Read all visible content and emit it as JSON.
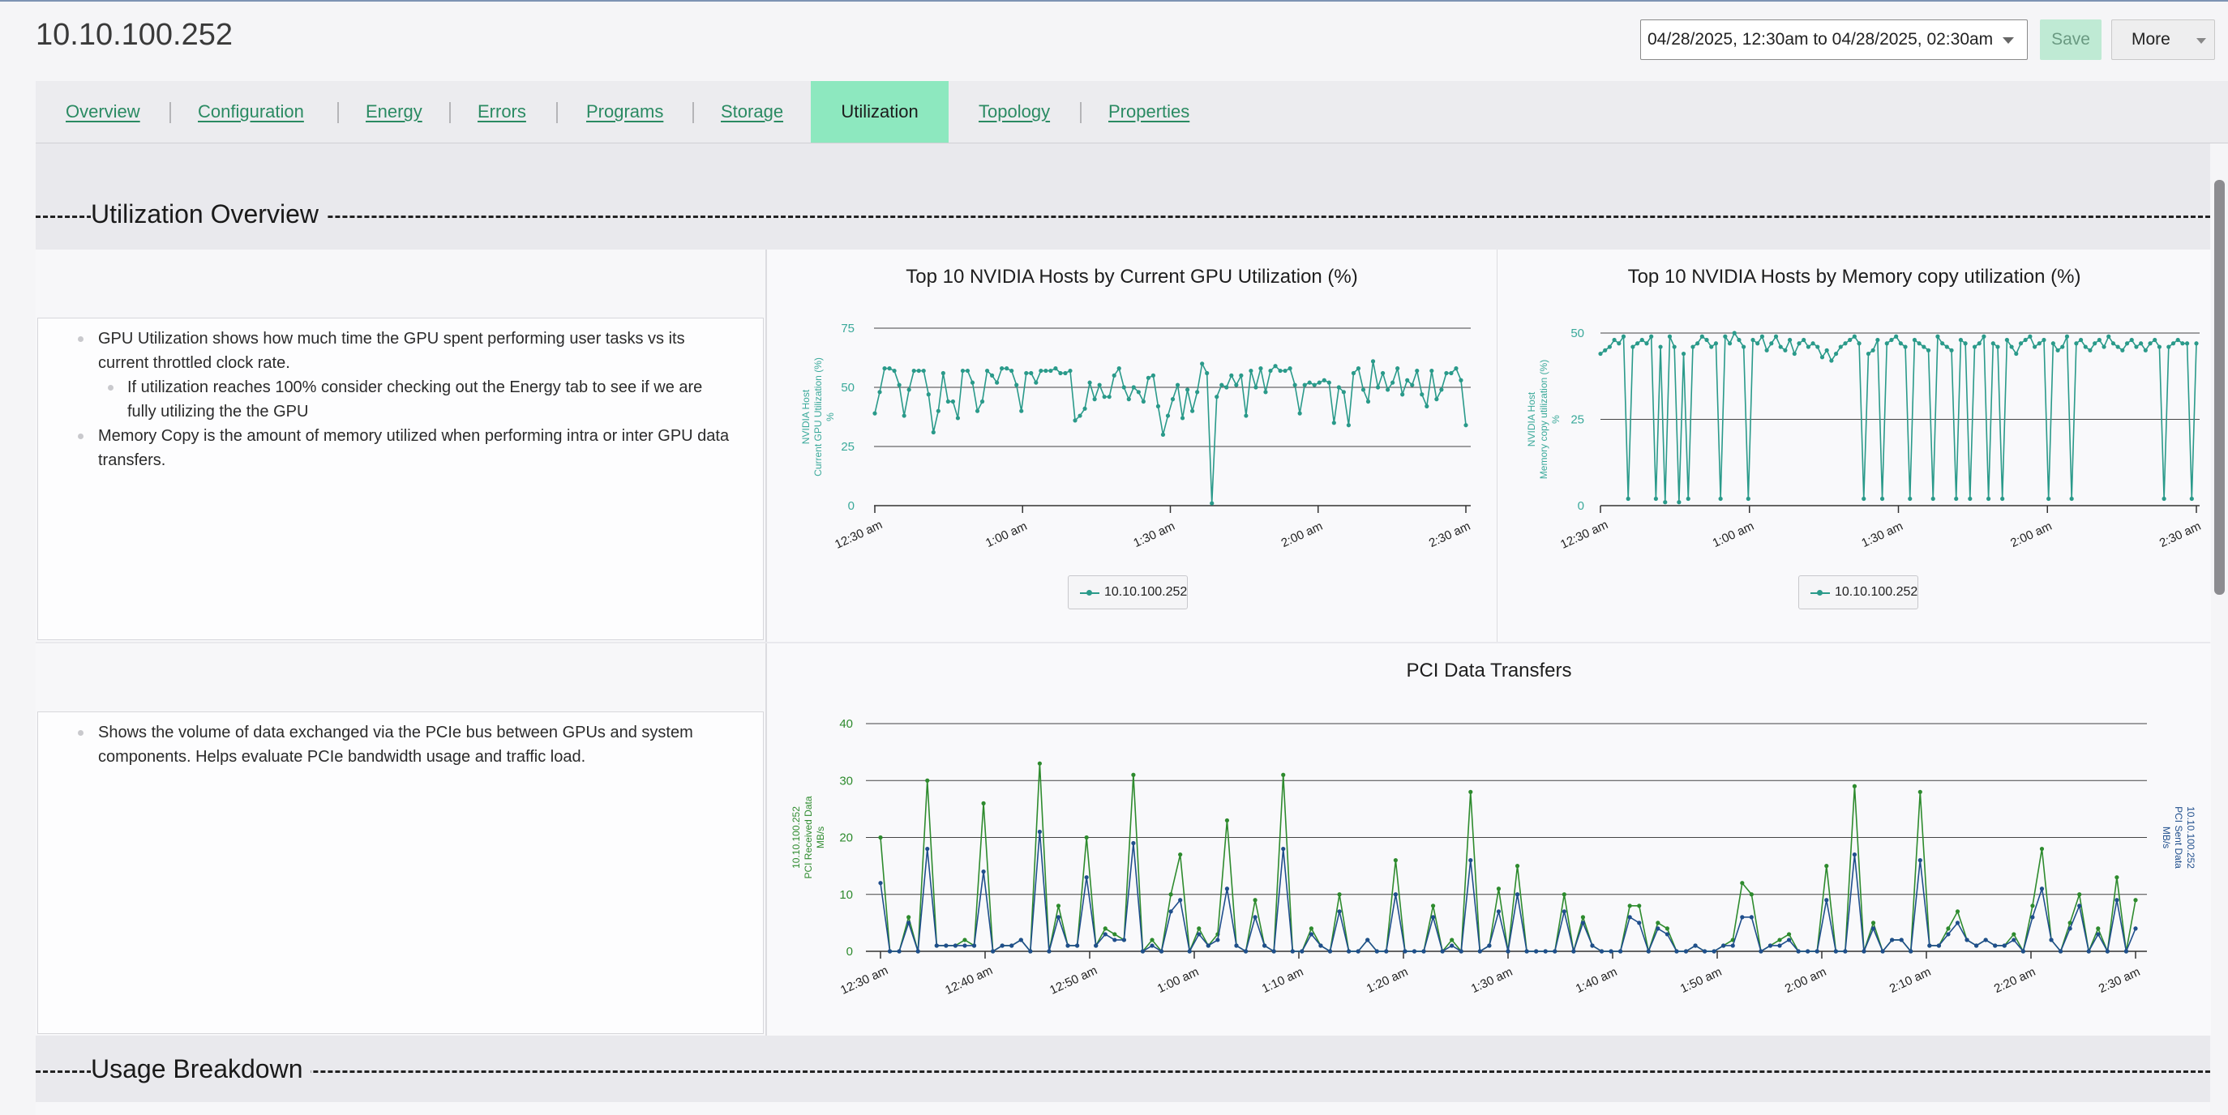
{
  "header": {
    "title": "10.10.100.252",
    "date_range": "04/28/2025, 12:30am to 04/28/2025, 02:30am",
    "save_label": "Save",
    "more_label": "More"
  },
  "tabs": [
    {
      "label": "Overview"
    },
    {
      "label": "Configuration"
    },
    {
      "label": "Energy"
    },
    {
      "label": "Errors"
    },
    {
      "label": "Programs"
    },
    {
      "label": "Storage"
    },
    {
      "label": "Utilization",
      "active": true
    },
    {
      "label": "Topology"
    },
    {
      "label": "Properties"
    }
  ],
  "sections": {
    "overview_title": "Utilization Overview",
    "usage_title": "Usage Breakdown"
  },
  "descriptions": {
    "gpu": {
      "b1": "GPU Utilization shows how much time the GPU spent performing user tasks vs its current throttled clock rate.",
      "b1_sub": "If utilization reaches 100% consider checking out the Energy tab to see if we are fully utilizing the the GPU",
      "b2": "Memory Copy is the amount of memory utilized when performing intra or inter GPU data transfers."
    },
    "pci": {
      "b1": "Shows the volume of data exchanged via the PCIe bus between GPUs and system components. Helps evaluate PCIe bandwidth usage and traffic load."
    }
  },
  "colors": {
    "teal": "#2a9a8a",
    "green": "#2e8b2e",
    "blue": "#1f4e8c",
    "accent": "#8de8bf"
  },
  "chart_data": [
    {
      "type": "line",
      "title": "Top 10 NVIDIA Hosts by Current GPU Utilization (%)",
      "ylabel_lines": [
        "NVIDIA Host",
        "Current GPU Utilization (%)",
        "%"
      ],
      "ylim": [
        0,
        75
      ],
      "yticks": [
        0,
        25,
        50,
        75
      ],
      "xticks": [
        "12:30 am",
        "1:00 am",
        "1:30 am",
        "2:00 am",
        "2:30 am"
      ],
      "legend": "10.10.100.252",
      "series": [
        {
          "name": "10.10.100.252",
          "values": [
            39,
            48,
            58,
            58,
            57,
            51,
            38,
            49,
            57,
            57,
            57,
            47,
            31,
            40,
            56,
            44,
            44,
            37,
            57,
            57,
            52,
            40,
            44,
            57,
            55,
            52,
            58,
            58,
            57,
            51,
            40,
            56,
            56,
            52,
            57,
            57,
            57,
            58,
            56,
            56,
            57,
            36,
            38,
            41,
            52,
            45,
            51,
            46,
            46,
            55,
            58,
            50,
            45,
            50,
            48,
            44,
            54,
            55,
            42,
            30,
            38,
            45,
            51,
            37,
            49,
            40,
            48,
            60,
            56,
            1,
            46,
            51,
            50,
            55,
            51,
            55,
            38,
            57,
            50,
            58,
            48,
            57,
            59,
            57,
            57,
            58,
            51,
            39,
            51,
            52,
            51,
            52,
            53,
            52,
            35,
            50,
            48,
            34,
            56,
            58,
            49,
            44,
            61,
            50,
            56,
            49,
            52,
            58,
            47,
            53,
            51,
            57,
            47,
            42,
            57,
            45,
            49,
            56,
            56,
            58,
            53,
            34
          ]
        }
      ]
    },
    {
      "type": "line",
      "title": "Top 10 NVIDIA Hosts by Memory copy utilization (%)",
      "ylabel_lines": [
        "NVIDIA Host",
        "Memory copy utilization (%)",
        "%"
      ],
      "ylim": [
        0,
        50
      ],
      "yticks": [
        0,
        25,
        50
      ],
      "xticks": [
        "12:30 am",
        "1:00 am",
        "1:30 am",
        "2:00 am",
        "2:30 am"
      ],
      "legend": "10.10.100.252",
      "series": [
        {
          "name": "10.10.100.252",
          "values": [
            44,
            45,
            46,
            48,
            47,
            49,
            2,
            46,
            47,
            48,
            47,
            49,
            2,
            46,
            1,
            49,
            46,
            1,
            44,
            2,
            46,
            47,
            49,
            48,
            46,
            47,
            2,
            49,
            47,
            50,
            48,
            46,
            2,
            48,
            47,
            49,
            45,
            47,
            49,
            46,
            45,
            48,
            44,
            47,
            48,
            46,
            47,
            46,
            43,
            45,
            42,
            44,
            46,
            47,
            48,
            49,
            47,
            2,
            44,
            45,
            48,
            2,
            47,
            48,
            49,
            47,
            46,
            2,
            48,
            47,
            46,
            45,
            2,
            49,
            47,
            46,
            45,
            2,
            48,
            47,
            2,
            46,
            47,
            49,
            2,
            47,
            46,
            2,
            48,
            46,
            44,
            47,
            48,
            49,
            46,
            47,
            48,
            2,
            47,
            45,
            46,
            49,
            2,
            47,
            48,
            46,
            45,
            47,
            48,
            46,
            49,
            47,
            46,
            45,
            47,
            48,
            46,
            47,
            45,
            47,
            48,
            46,
            2,
            46,
            47,
            48,
            47,
            47,
            2,
            47
          ]
        }
      ]
    },
    {
      "type": "line",
      "title": "PCI Data Transfers",
      "ylabel_left_lines": [
        "10.10.100.252",
        "PCI Received Data",
        "MB/s"
      ],
      "ylabel_right_lines": [
        "10.10.100.252",
        "PCI Sent Data",
        "MB/s"
      ],
      "ylim": [
        0,
        40
      ],
      "yticks": [
        0,
        10,
        20,
        30,
        40
      ],
      "xticks": [
        "12:30 am",
        "12:40 am",
        "12:50 am",
        "1:00 am",
        "1:10 am",
        "1:20 am",
        "1:30 am",
        "1:40 am",
        "1:50 am",
        "2:00 am",
        "2:10 am",
        "2:20 am",
        "2:30 am"
      ],
      "series": [
        {
          "name": "PCI Received Data",
          "values": [
            20,
            0,
            0,
            6,
            0,
            30,
            1,
            1,
            1,
            2,
            1,
            26,
            0,
            1,
            1,
            2,
            0,
            33,
            0,
            8,
            1,
            1,
            20,
            1,
            4,
            3,
            2,
            31,
            0,
            2,
            0,
            10,
            17,
            0,
            4,
            1,
            3,
            23,
            1,
            0,
            9,
            1,
            0,
            31,
            0,
            0,
            4,
            1,
            0,
            10,
            0,
            0,
            2,
            0,
            0,
            16,
            0,
            0,
            0,
            8,
            0,
            2,
            0,
            28,
            0,
            1,
            11,
            0,
            15,
            0,
            0,
            0,
            0,
            10,
            0,
            6,
            1,
            0,
            0,
            0,
            8,
            8,
            0,
            5,
            4,
            0,
            0,
            1,
            0,
            0,
            1,
            2,
            12,
            10,
            0,
            1,
            2,
            3,
            0,
            0,
            0,
            15,
            0,
            0,
            29,
            0,
            5,
            0,
            2,
            2,
            0,
            28,
            1,
            1,
            4,
            7,
            2,
            1,
            2,
            1,
            1,
            3,
            0,
            8,
            18,
            2,
            0,
            5,
            10,
            0,
            4,
            0,
            13,
            0,
            9
          ]
        },
        {
          "name": "PCI Sent Data",
          "values": [
            12,
            0,
            0,
            5,
            0,
            18,
            1,
            1,
            1,
            1,
            1,
            14,
            0,
            1,
            1,
            2,
            0,
            21,
            0,
            6,
            1,
            1,
            13,
            1,
            3,
            2,
            2,
            19,
            0,
            1,
            0,
            7,
            9,
            0,
            3,
            1,
            2,
            11,
            1,
            0,
            6,
            1,
            0,
            18,
            0,
            0,
            3,
            1,
            0,
            7,
            0,
            0,
            2,
            0,
            0,
            10,
            0,
            0,
            0,
            6,
            0,
            1,
            0,
            16,
            0,
            1,
            7,
            0,
            10,
            0,
            0,
            0,
            0,
            7,
            0,
            5,
            1,
            0,
            0,
            0,
            6,
            5,
            0,
            4,
            3,
            0,
            0,
            1,
            0,
            0,
            1,
            1,
            6,
            6,
            0,
            1,
            1,
            2,
            0,
            0,
            0,
            9,
            0,
            0,
            17,
            0,
            4,
            0,
            2,
            2,
            0,
            16,
            1,
            1,
            3,
            5,
            2,
            1,
            2,
            1,
            1,
            2,
            0,
            6,
            11,
            2,
            0,
            4,
            8,
            0,
            3,
            0,
            9,
            0,
            4
          ]
        }
      ]
    }
  ]
}
